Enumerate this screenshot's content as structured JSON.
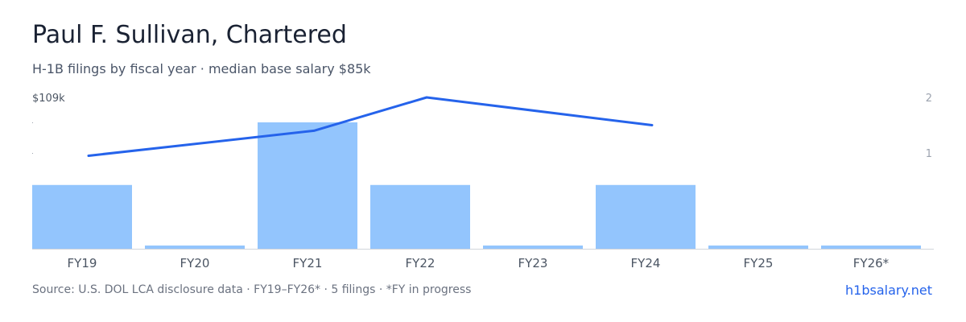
{
  "header": {
    "title": "Paul F. Sullivan, Chartered",
    "subtitle": "H-1B filings by fiscal year · median base salary $85k"
  },
  "footer": {
    "source": "Source: U.S. DOL LCA disclosure data · FY19–FY26* · 5 filings · *FY in progress",
    "brand": "h1bsalary.net"
  },
  "colors": {
    "bar": "#93c5fd",
    "line": "#2563eb",
    "axis_text": "#9ca3af",
    "tick_text": "#4b5563",
    "baseline": "#d1d5db"
  },
  "chart_data": {
    "type": "bar",
    "categories": [
      "FY19",
      "FY20",
      "FY21",
      "FY22",
      "FY23",
      "FY24",
      "FY25",
      "FY26*"
    ],
    "series": [
      {
        "kind": "bar",
        "axis": "left",
        "values": [
          55,
          0,
          109,
          55,
          0,
          55,
          0,
          0
        ]
      },
      {
        "kind": "line",
        "axis": "right",
        "values": [
          0.95,
          null,
          1.4,
          2,
          null,
          1.5,
          null,
          null
        ]
      }
    ],
    "left_axis": {
      "max_label": "$109k",
      "ylim": [
        0,
        109
      ]
    },
    "right_axis": {
      "ticks": [
        "1",
        "2"
      ],
      "ylim": [
        0,
        2
      ]
    },
    "grid": false,
    "title": "Paul F. Sullivan, Chartered"
  }
}
